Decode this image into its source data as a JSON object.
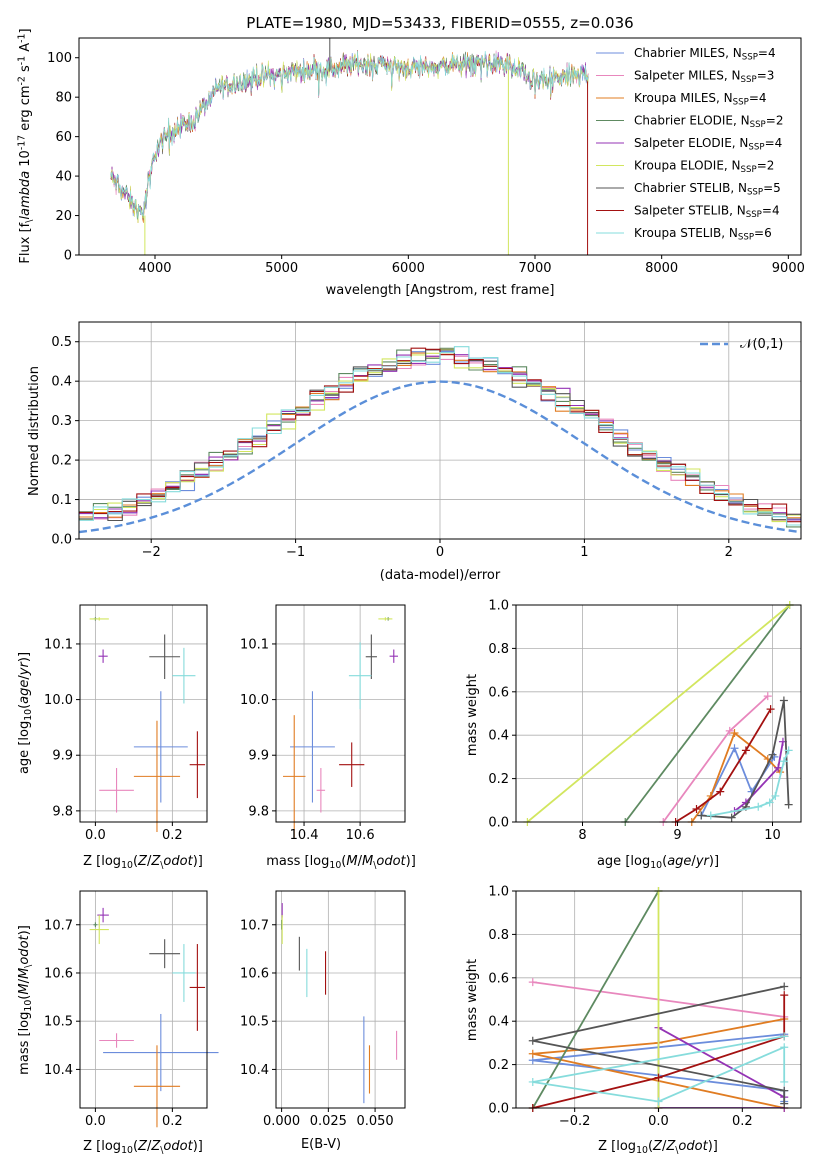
{
  "figure": {
    "title": "PLATE=1980, MJD=53433, FIBERID=0555, z=0.036"
  },
  "colors": [
    "#6c8ddc",
    "#e887bd",
    "#e07c22",
    "#5e8a61",
    "#9433b5",
    "#d2e65f",
    "#555555",
    "#a31111",
    "#86dcdc"
  ],
  "series_names": [
    "Chabrier MILES, N$_{SSP}$=4",
    "Salpeter MILES, N$_{SSP}$=3",
    "Kroupa MILES, N$_{SSP}$=4",
    "Chabrier ELODIE, N$_{SSP}$=2",
    "Salpeter ELODIE, N$_{SSP}$=4",
    "Kroupa ELODIE, N$_{SSP}$=2",
    "Chabrier STELIB, N$_{SSP}$=5",
    "Salpeter STELIB, N$_{SSP}$=4",
    "Kroupa STELIB, N$_{SSP}$=6"
  ],
  "chart_data": [
    {
      "id": "spectrum",
      "type": "line",
      "xlabel": "wavelength [Angstrom, rest frame]",
      "ylabel": "Flux [f$_\\lambda$ 10$^{-17}$ erg cm$^{-2}$ s$^{-1}$ A$^{-1}$]",
      "xlim": [
        3400,
        9100
      ],
      "ylim": [
        0,
        110
      ],
      "xticks": [
        4000,
        5000,
        6000,
        7000,
        8000,
        9000
      ],
      "yticks": [
        0,
        20,
        40,
        60,
        80,
        100
      ],
      "grid": false,
      "legend": "right",
      "wavelength_range": [
        3650,
        7420
      ],
      "continuum_wavelength": [
        3650,
        3800,
        3900,
        4000,
        4100,
        4300,
        4500,
        4800,
        5000,
        5200,
        5400,
        5600,
        5800,
        6000,
        6300,
        6600,
        6800,
        7000,
        7200,
        7420
      ],
      "continuum_flux": [
        40,
        28,
        20,
        52,
        62,
        68,
        85,
        90,
        92,
        94,
        95,
        97,
        97,
        95,
        96,
        98,
        96,
        88,
        90,
        92
      ]
    },
    {
      "id": "residuals",
      "type": "step",
      "xlabel": "(data-model)/error",
      "ylabel": "Normed distribution",
      "xlim": [
        -2.5,
        2.5
      ],
      "ylim": [
        0,
        0.55
      ],
      "xticks": [
        -2,
        -1,
        0,
        1,
        2
      ],
      "yticks": [
        0.0,
        0.1,
        0.2,
        0.3,
        0.4,
        0.5
      ],
      "grid": true,
      "legend": "top-right",
      "reference_label": "$\\mathcal{N}(0,1)$",
      "bin_width": 0.1
    },
    {
      "id": "age_vs_Z",
      "type": "errorbar",
      "xlabel": "Z [log$_{10}$($Z/Z_\\odot$)]",
      "ylabel": "age  [log$_{10}$($age/yr$)]",
      "xlim": [
        -0.04,
        0.29
      ],
      "ylim": [
        9.78,
        10.17
      ],
      "xticks": [
        0.0,
        0.2
      ],
      "yticks": [
        9.8,
        9.9,
        10.0,
        10.1
      ],
      "grid": true,
      "points": [
        {
          "s": 0,
          "x": 0.17,
          "y": 9.915,
          "xerr": 0.07,
          "yerr": 0.1
        },
        {
          "s": 1,
          "x": 0.055,
          "y": 9.837,
          "xerr": 0.045,
          "yerr": 0.04
        },
        {
          "s": 2,
          "x": 0.16,
          "y": 9.862,
          "xerr": 0.06,
          "yerr": 0.1
        },
        {
          "s": 3,
          "x": 0.0,
          "y": 10.145,
          "xerr": 0.005,
          "yerr": 0.003
        },
        {
          "s": 4,
          "x": 0.02,
          "y": 10.078,
          "xerr": 0.012,
          "yerr": 0.012
        },
        {
          "s": 5,
          "x": 0.01,
          "y": 10.145,
          "xerr": 0.025,
          "yerr": 0.003
        },
        {
          "s": 6,
          "x": 0.18,
          "y": 10.077,
          "xerr": 0.04,
          "yerr": 0.04
        },
        {
          "s": 7,
          "x": 0.265,
          "y": 9.883,
          "xerr": 0.02,
          "yerr": 0.06
        },
        {
          "s": 8,
          "x": 0.23,
          "y": 10.043,
          "xerr": 0.03,
          "yerr": 0.05
        }
      ]
    },
    {
      "id": "age_vs_mass",
      "type": "errorbar",
      "xlabel": "mass [log$_{10}$($M/M_\\odot$)]",
      "ylabel": "",
      "xlim": [
        10.3,
        10.76
      ],
      "ylim": [
        9.78,
        10.17
      ],
      "xticks": [
        10.4,
        10.6
      ],
      "yticks": [
        9.8,
        9.9,
        10.0,
        10.1
      ],
      "grid": true,
      "points": [
        {
          "s": 0,
          "x": 10.43,
          "y": 9.915,
          "xerr": 0.08,
          "yerr": 0.1
        },
        {
          "s": 1,
          "x": 10.46,
          "y": 9.837,
          "xerr": 0.015,
          "yerr": 0.04
        },
        {
          "s": 2,
          "x": 10.365,
          "y": 9.862,
          "xerr": 0.04,
          "yerr": 0.11
        },
        {
          "s": 3,
          "x": 10.7,
          "y": 10.145,
          "xerr": 0.005,
          "yerr": 0.003
        },
        {
          "s": 4,
          "x": 10.72,
          "y": 10.078,
          "xerr": 0.015,
          "yerr": 0.012
        },
        {
          "s": 5,
          "x": 10.69,
          "y": 10.145,
          "xerr": 0.025,
          "yerr": 0.003
        },
        {
          "s": 6,
          "x": 10.64,
          "y": 10.077,
          "xerr": 0.02,
          "yerr": 0.04
        },
        {
          "s": 7,
          "x": 10.57,
          "y": 9.883,
          "xerr": 0.045,
          "yerr": 0.04
        },
        {
          "s": 8,
          "x": 10.6,
          "y": 10.043,
          "xerr": 0.04,
          "yerr": 0.06
        }
      ]
    },
    {
      "id": "massweight_vs_age",
      "type": "line",
      "xlabel": "age  [log$_{10}$($age/yr$)]",
      "ylabel": "mass weight",
      "xlim": [
        7.3,
        10.3
      ],
      "ylim": [
        0,
        1.0
      ],
      "xticks": [
        8,
        9,
        10
      ],
      "yticks": [
        0.0,
        0.2,
        0.4,
        0.6,
        0.8,
        1.0
      ],
      "grid": true,
      "series": [
        {
          "s": 0,
          "x": [
            9.25,
            9.6,
            9.78,
            10.02
          ],
          "y": [
            0.03,
            0.34,
            0.14,
            0.3
          ]
        },
        {
          "s": 1,
          "x": [
            8.85,
            9.55,
            9.95
          ],
          "y": [
            0.0,
            0.42,
            0.58
          ]
        },
        {
          "s": 2,
          "x": [
            9.15,
            9.35,
            9.6,
            9.95,
            10.08
          ],
          "y": [
            0.0,
            0.12,
            0.41,
            0.29,
            0.23
          ]
        },
        {
          "s": 3,
          "x": [
            8.45,
            10.18
          ],
          "y": [
            0.0,
            1.0
          ]
        },
        {
          "s": 4,
          "x": [
            9.6,
            9.72,
            10.06,
            10.11
          ],
          "y": [
            0.05,
            0.09,
            0.25,
            0.37
          ]
        },
        {
          "s": 5,
          "x": [
            7.42,
            10.18
          ],
          "y": [
            0.0,
            1.0
          ]
        },
        {
          "s": 6,
          "x": [
            9.25,
            9.57,
            9.72,
            10.0,
            10.12,
            10.17
          ],
          "y": [
            0.03,
            0.02,
            0.07,
            0.31,
            0.56,
            0.08
          ]
        },
        {
          "s": 7,
          "x": [
            8.98,
            9.2,
            9.45,
            9.72,
            9.98
          ],
          "y": [
            0.0,
            0.06,
            0.14,
            0.33,
            0.52
          ]
        },
        {
          "s": 8,
          "x": [
            9.35,
            9.85,
            9.97,
            10.03,
            10.12,
            10.17
          ],
          "y": [
            0.03,
            0.07,
            0.09,
            0.12,
            0.28,
            0.33
          ]
        }
      ]
    },
    {
      "id": "mass_vs_Z",
      "type": "errorbar",
      "xlabel": "Z [log$_{10}$($Z/Z_\\odot$)]",
      "ylabel": "mass [log$_{10}$($M/M_\\odot$)]",
      "xlim": [
        -0.04,
        0.29
      ],
      "ylim": [
        10.32,
        10.77
      ],
      "xticks": [
        0.0,
        0.2
      ],
      "yticks": [
        10.4,
        10.5,
        10.6,
        10.7
      ],
      "grid": true,
      "points": [
        {
          "s": 0,
          "x": 0.17,
          "y": 10.435,
          "xerr": 0.15,
          "yerr": 0.08
        },
        {
          "s": 1,
          "x": 0.055,
          "y": 10.46,
          "xerr": 0.045,
          "yerr": 0.015
        },
        {
          "s": 2,
          "x": 0.16,
          "y": 10.365,
          "xerr": 0.06,
          "yerr": 0.085
        },
        {
          "s": 3,
          "x": 0.0,
          "y": 10.7,
          "xerr": 0.005,
          "yerr": 0.005
        },
        {
          "s": 4,
          "x": 0.02,
          "y": 10.72,
          "xerr": 0.015,
          "yerr": 0.015
        },
        {
          "s": 5,
          "x": 0.01,
          "y": 10.69,
          "xerr": 0.025,
          "yerr": 0.03
        },
        {
          "s": 6,
          "x": 0.18,
          "y": 10.64,
          "xerr": 0.04,
          "yerr": 0.03
        },
        {
          "s": 7,
          "x": 0.265,
          "y": 10.57,
          "xerr": 0.02,
          "yerr": 0.09
        },
        {
          "s": 8,
          "x": 0.23,
          "y": 10.6,
          "xerr": 0.03,
          "yerr": 0.06
        }
      ]
    },
    {
      "id": "mass_vs_EBV",
      "type": "errorbar",
      "xlabel": "E(B-V)",
      "ylabel": "",
      "xlim": [
        -0.003,
        0.066
      ],
      "ylim": [
        10.32,
        10.77
      ],
      "xticks": [
        0.0,
        0.025,
        0.05
      ],
      "yticks": [
        10.4,
        10.5,
        10.6,
        10.7
      ],
      "grid": true,
      "points": [
        {
          "s": 0,
          "x": 0.044,
          "y": 10.42,
          "xerr": 0,
          "yerr": 0.09
        },
        {
          "s": 1,
          "x": 0.0615,
          "y": 10.45,
          "xerr": 0,
          "yerr": 0.03
        },
        {
          "s": 2,
          "x": 0.047,
          "y": 10.4,
          "xerr": 0,
          "yerr": 0.05
        },
        {
          "s": 3,
          "x": 0.0,
          "y": 10.7,
          "xerr": 0,
          "yerr": 0.01
        },
        {
          "s": 4,
          "x": 0.0003,
          "y": 10.73,
          "xerr": 0,
          "yerr": 0.015
        },
        {
          "s": 5,
          "x": 0.0003,
          "y": 10.69,
          "xerr": 0,
          "yerr": 0.03
        },
        {
          "s": 6,
          "x": 0.0095,
          "y": 10.64,
          "xerr": 0,
          "yerr": 0.035
        },
        {
          "s": 7,
          "x": 0.0235,
          "y": 10.6,
          "xerr": 0,
          "yerr": 0.045
        },
        {
          "s": 8,
          "x": 0.0135,
          "y": 10.6,
          "xerr": 0,
          "yerr": 0.05
        }
      ]
    },
    {
      "id": "massweight_vs_Z",
      "type": "line",
      "xlabel": "Z [log$_{10}$($Z/Z_\\odot$)]",
      "ylabel": "mass weight",
      "xlim": [
        -0.34,
        0.34
      ],
      "ylim": [
        0,
        1.0
      ],
      "xticks": [
        -0.2,
        0.0,
        0.2
      ],
      "yticks": [
        0.0,
        0.2,
        0.4,
        0.6,
        0.8,
        1.0
      ],
      "grid": true,
      "series": [
        {
          "s": 0,
          "x": [
            0.3,
            -0.3,
            0.3,
            0.3
          ],
          "y": [
            0.34,
            0.22,
            0.08,
            0.03
          ]
        },
        {
          "s": 1,
          "x": [
            -0.3,
            0.3
          ],
          "y": [
            0.58,
            0.42
          ]
        },
        {
          "s": 2,
          "x": [
            0.3,
            0.0,
            -0.3,
            0.3
          ],
          "y": [
            0.41,
            0.3,
            0.25,
            0.0
          ]
        },
        {
          "s": 3,
          "x": [
            -0.3,
            0.0
          ],
          "y": [
            0.0,
            1.0
          ]
        },
        {
          "s": 4,
          "x": [
            0.3,
            0.0,
            0.0,
            0.3
          ],
          "y": [
            0.05,
            0.37,
            0.0,
            0.0
          ]
        },
        {
          "s": 5,
          "x": [
            0.0,
            0.0
          ],
          "y": [
            0.0,
            1.0
          ]
        },
        {
          "s": 6,
          "x": [
            0.3,
            -0.3,
            0.3,
            0.3
          ],
          "y": [
            0.56,
            0.31,
            0.08,
            0.02
          ]
        },
        {
          "s": 7,
          "x": [
            -0.3,
            0.0,
            0.3,
            0.3
          ],
          "y": [
            0.0,
            0.14,
            0.33,
            0.52
          ]
        },
        {
          "s": 8,
          "x": [
            0.3,
            -0.3,
            0.0,
            0.3,
            0.3
          ],
          "y": [
            0.33,
            0.12,
            0.03,
            0.28,
            0.12
          ]
        }
      ]
    }
  ]
}
